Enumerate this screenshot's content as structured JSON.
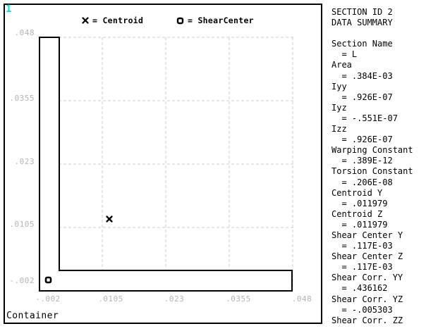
{
  "window": {
    "number": "1",
    "footer": "Container"
  },
  "legend": {
    "centroid": {
      "symbol": "x",
      "label": "= Centroid"
    },
    "shear_center": {
      "symbol": "o",
      "label": "= ShearCenter"
    }
  },
  "plot": {
    "x_ticks": [
      "-.002",
      ".0105",
      ".023",
      ".0355",
      ".048"
    ],
    "y_ticks": [
      ".048",
      ".0355",
      ".023",
      ".0105",
      "-.002"
    ],
    "x_range": [
      "-.002",
      ".048"
    ],
    "y_range": [
      "-.002",
      ".048"
    ],
    "grid": "dashed",
    "shape": {
      "kind": "L-section outline",
      "approx_vertices_axis_units": [
        [
          -0.002,
          0.048
        ],
        [
          0.002,
          0.048
        ],
        [
          0.002,
          0.002
        ],
        [
          0.048,
          0.002
        ],
        [
          0.048,
          -0.002
        ],
        [
          -0.002,
          -0.002
        ]
      ]
    },
    "markers": [
      {
        "symbol": "x",
        "name": "Centroid",
        "y": ".011979",
        "z": ".011979"
      },
      {
        "symbol": "o",
        "name": "ShearCenter",
        "y": ".117E-03",
        "z": ".117E-03"
      }
    ]
  },
  "panel": {
    "title": [
      "SECTION ID 2",
      "DATA SUMMARY"
    ],
    "properties": [
      {
        "name": "Section Name",
        "value": "L"
      },
      {
        "name": "Area",
        "value": ".384E-03"
      },
      {
        "name": "Iyy",
        "value": ".926E-07"
      },
      {
        "name": "Iyz",
        "value": "-.551E-07"
      },
      {
        "name": "Izz",
        "value": ".926E-07"
      },
      {
        "name": "Warping Constant",
        "value": ".389E-12"
      },
      {
        "name": "Torsion Constant",
        "value": ".206E-08"
      },
      {
        "name": "Centroid Y",
        "value": ".011979"
      },
      {
        "name": "Centroid Z",
        "value": ".011979"
      },
      {
        "name": "Shear Center Y",
        "value": ".117E-03"
      },
      {
        "name": "Shear Center Z",
        "value": ".117E-03"
      },
      {
        "name": "Shear Corr. YY",
        "value": ".436162"
      },
      {
        "name": "Shear Corr. YZ",
        "value": "-.005303"
      },
      {
        "name": "Shear Corr. ZZ",
        "value": ""
      }
    ]
  },
  "colors": {
    "window_number": "#00dcdc",
    "tick_label": "#b4b4b4",
    "gridline": "#cdcdcd",
    "outline": "#000000",
    "background": "#ffffff"
  }
}
